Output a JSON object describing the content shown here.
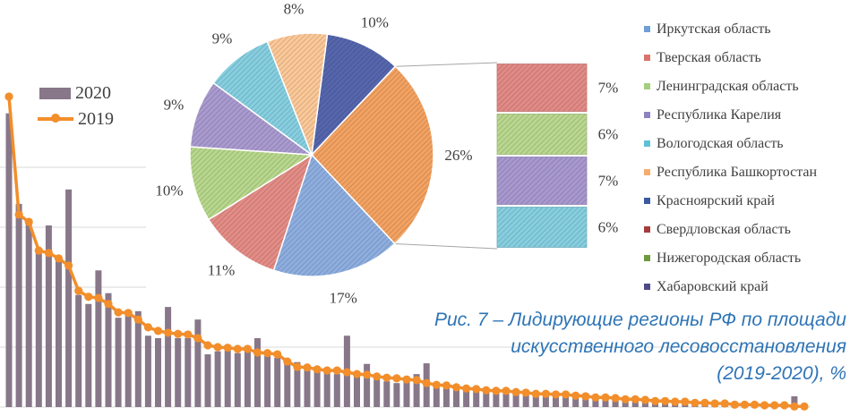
{
  "chart_data": [
    {
      "type": "bar",
      "series": [
        {
          "name": "2020",
          "type": "bar",
          "color": "#877789",
          "values": [
            4.9,
            3.39,
            3.06,
            2.6,
            3.03,
            2.46,
            3.63,
            1.87,
            1.72,
            2.28,
            1.9,
            1.49,
            1.54,
            1.6,
            1.19,
            1.15,
            1.67,
            1.15,
            1.15,
            1.46,
            0.88,
            0.93,
            0.94,
            0.9,
            0.94,
            1.15,
            0.85,
            0.82,
            0.73,
            0.75,
            0.64,
            0.6,
            0.58,
            0.55,
            1.19,
            0.52,
            0.72,
            0.46,
            0.43,
            0.4,
            0.45,
            0.55,
            0.73,
            0.37,
            0.34,
            0.33,
            0.3,
            0.28,
            0.27,
            0.25,
            0.27,
            0.24,
            0.22,
            0.21,
            0.21,
            0.19,
            0.19,
            0.18,
            0.16,
            0.16,
            0.15,
            0.15,
            0.13,
            0.12,
            0.12,
            0.1,
            0.1,
            0.09,
            0.09,
            0.07,
            0.07,
            0.06,
            0.06,
            0.04,
            0.04,
            0.04,
            0.03,
            0.03,
            0.03,
            0.18,
            0.01
          ]
        },
        {
          "name": "2019",
          "type": "line",
          "color": "#f28e2b",
          "values": [
            5.18,
            3.21,
            3.09,
            2.61,
            2.57,
            2.48,
            2.36,
            1.94,
            1.84,
            1.82,
            1.72,
            1.58,
            1.57,
            1.46,
            1.33,
            1.27,
            1.24,
            1.22,
            1.21,
            1.15,
            1.03,
            1.0,
            0.99,
            0.97,
            0.97,
            0.91,
            0.9,
            0.88,
            0.76,
            0.67,
            0.66,
            0.63,
            0.61,
            0.61,
            0.58,
            0.55,
            0.54,
            0.51,
            0.49,
            0.48,
            0.46,
            0.45,
            0.4,
            0.37,
            0.36,
            0.33,
            0.31,
            0.3,
            0.28,
            0.27,
            0.27,
            0.25,
            0.24,
            0.22,
            0.22,
            0.21,
            0.21,
            0.19,
            0.18,
            0.16,
            0.16,
            0.15,
            0.13,
            0.13,
            0.12,
            0.1,
            0.1,
            0.09,
            0.09,
            0.07,
            0.07,
            0.06,
            0.06,
            0.04,
            0.04,
            0.04,
            0.03,
            0.03,
            0.03,
            0.01,
            0.01
          ]
        }
      ],
      "ylim": [
        0,
        5.5
      ],
      "grid": true,
      "legend": "top-left"
    },
    {
      "type": "pie",
      "slices": [
        {
          "value": 10,
          "color": "#5566ad"
        },
        {
          "value": 26,
          "color": "#f3a261"
        },
        {
          "value": 17,
          "color": "#8eaee0"
        },
        {
          "value": 11,
          "color": "#e48c86"
        },
        {
          "value": 10,
          "color": "#b7d78c"
        },
        {
          "value": 9,
          "color": "#a99acf"
        },
        {
          "value": 9,
          "color": "#86cfe0"
        },
        {
          "value": 8,
          "color": "#fbc898"
        }
      ],
      "breakdown": {
        "type": "bar",
        "slice": 1,
        "values": [
          7,
          6,
          7,
          6
        ],
        "colors": [
          "#e28a86",
          "#b9d78e",
          "#a898cf",
          "#86cfe0"
        ]
      },
      "legend": {
        "placement": "right",
        "items": [
          {
            "label": "Иркутская область",
            "color": "#6f9fd8"
          },
          {
            "label": "Тверская область",
            "color": "#d9736b"
          },
          {
            "label": "Ленинградская область",
            "color": "#a4cf7c"
          },
          {
            "label": "Республика Карелия",
            "color": "#8f82c2"
          },
          {
            "label": "Вологодская область",
            "color": "#5fc0d6"
          },
          {
            "label": "Республика Башкортостан",
            "color": "#f6ad6e"
          },
          {
            "label": "Красноярский край",
            "color": "#3b5aa0"
          },
          {
            "label": "Свердловская область",
            "color": "#a63c3c"
          },
          {
            "label": "Нижегородская область",
            "color": "#6e9a3e"
          },
          {
            "label": "Хабаровский край",
            "color": "#4f4a8a"
          }
        ]
      }
    }
  ],
  "caption": {
    "lines": [
      "Рис. 7 – Лидирующие регионы РФ по площади",
      "искусственного лесовосстановления",
      "(2019-2020), %"
    ]
  }
}
